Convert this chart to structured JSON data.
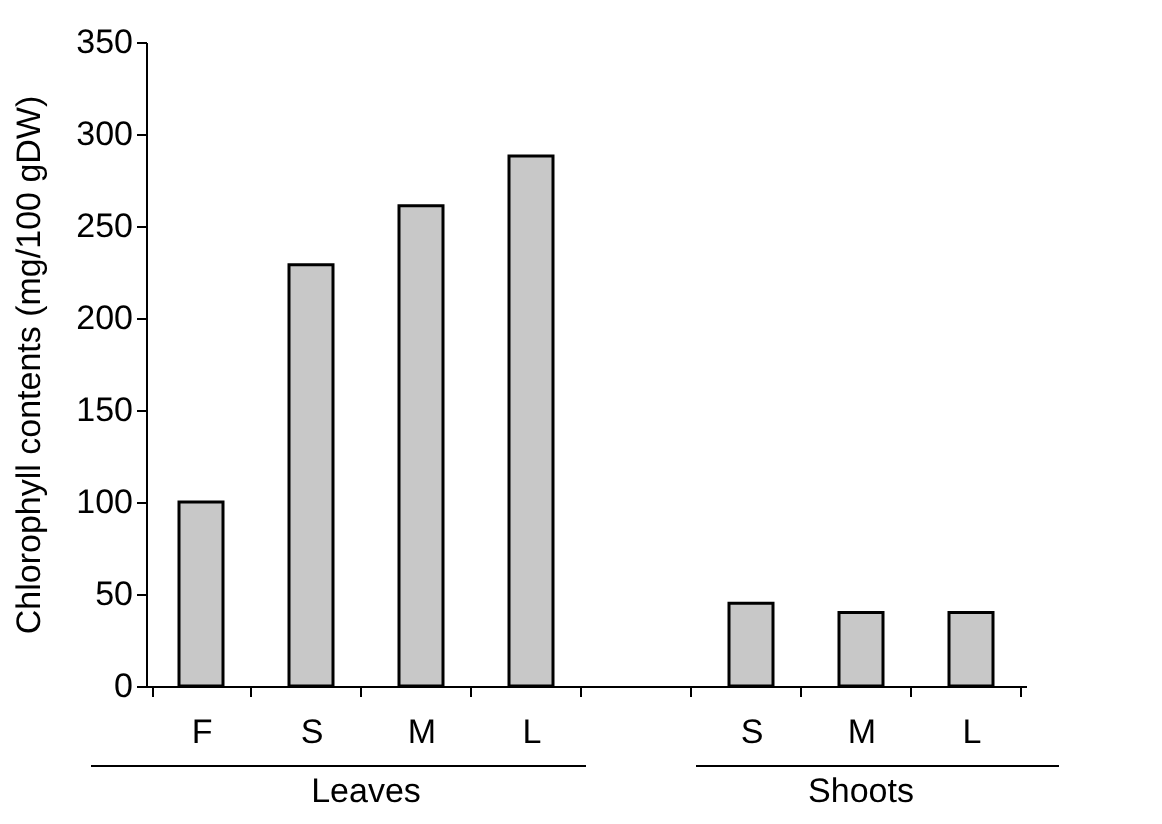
{
  "chart_data": {
    "type": "bar",
    "ylabel": "Chlorophyll contents (mg/100 gDW)",
    "categories": [
      "F",
      "S",
      "M",
      "L",
      null,
      "S",
      "M",
      "L"
    ],
    "values": [
      100,
      229,
      261,
      288,
      null,
      45,
      40,
      40
    ],
    "color": "#c8c8c8",
    "ylim": [
      0,
      350
    ],
    "yticks": [
      0,
      50,
      100,
      150,
      200,
      250,
      300,
      350
    ],
    "grid": false,
    "annotations": [
      "Leaves",
      "Shoots"
    ]
  }
}
